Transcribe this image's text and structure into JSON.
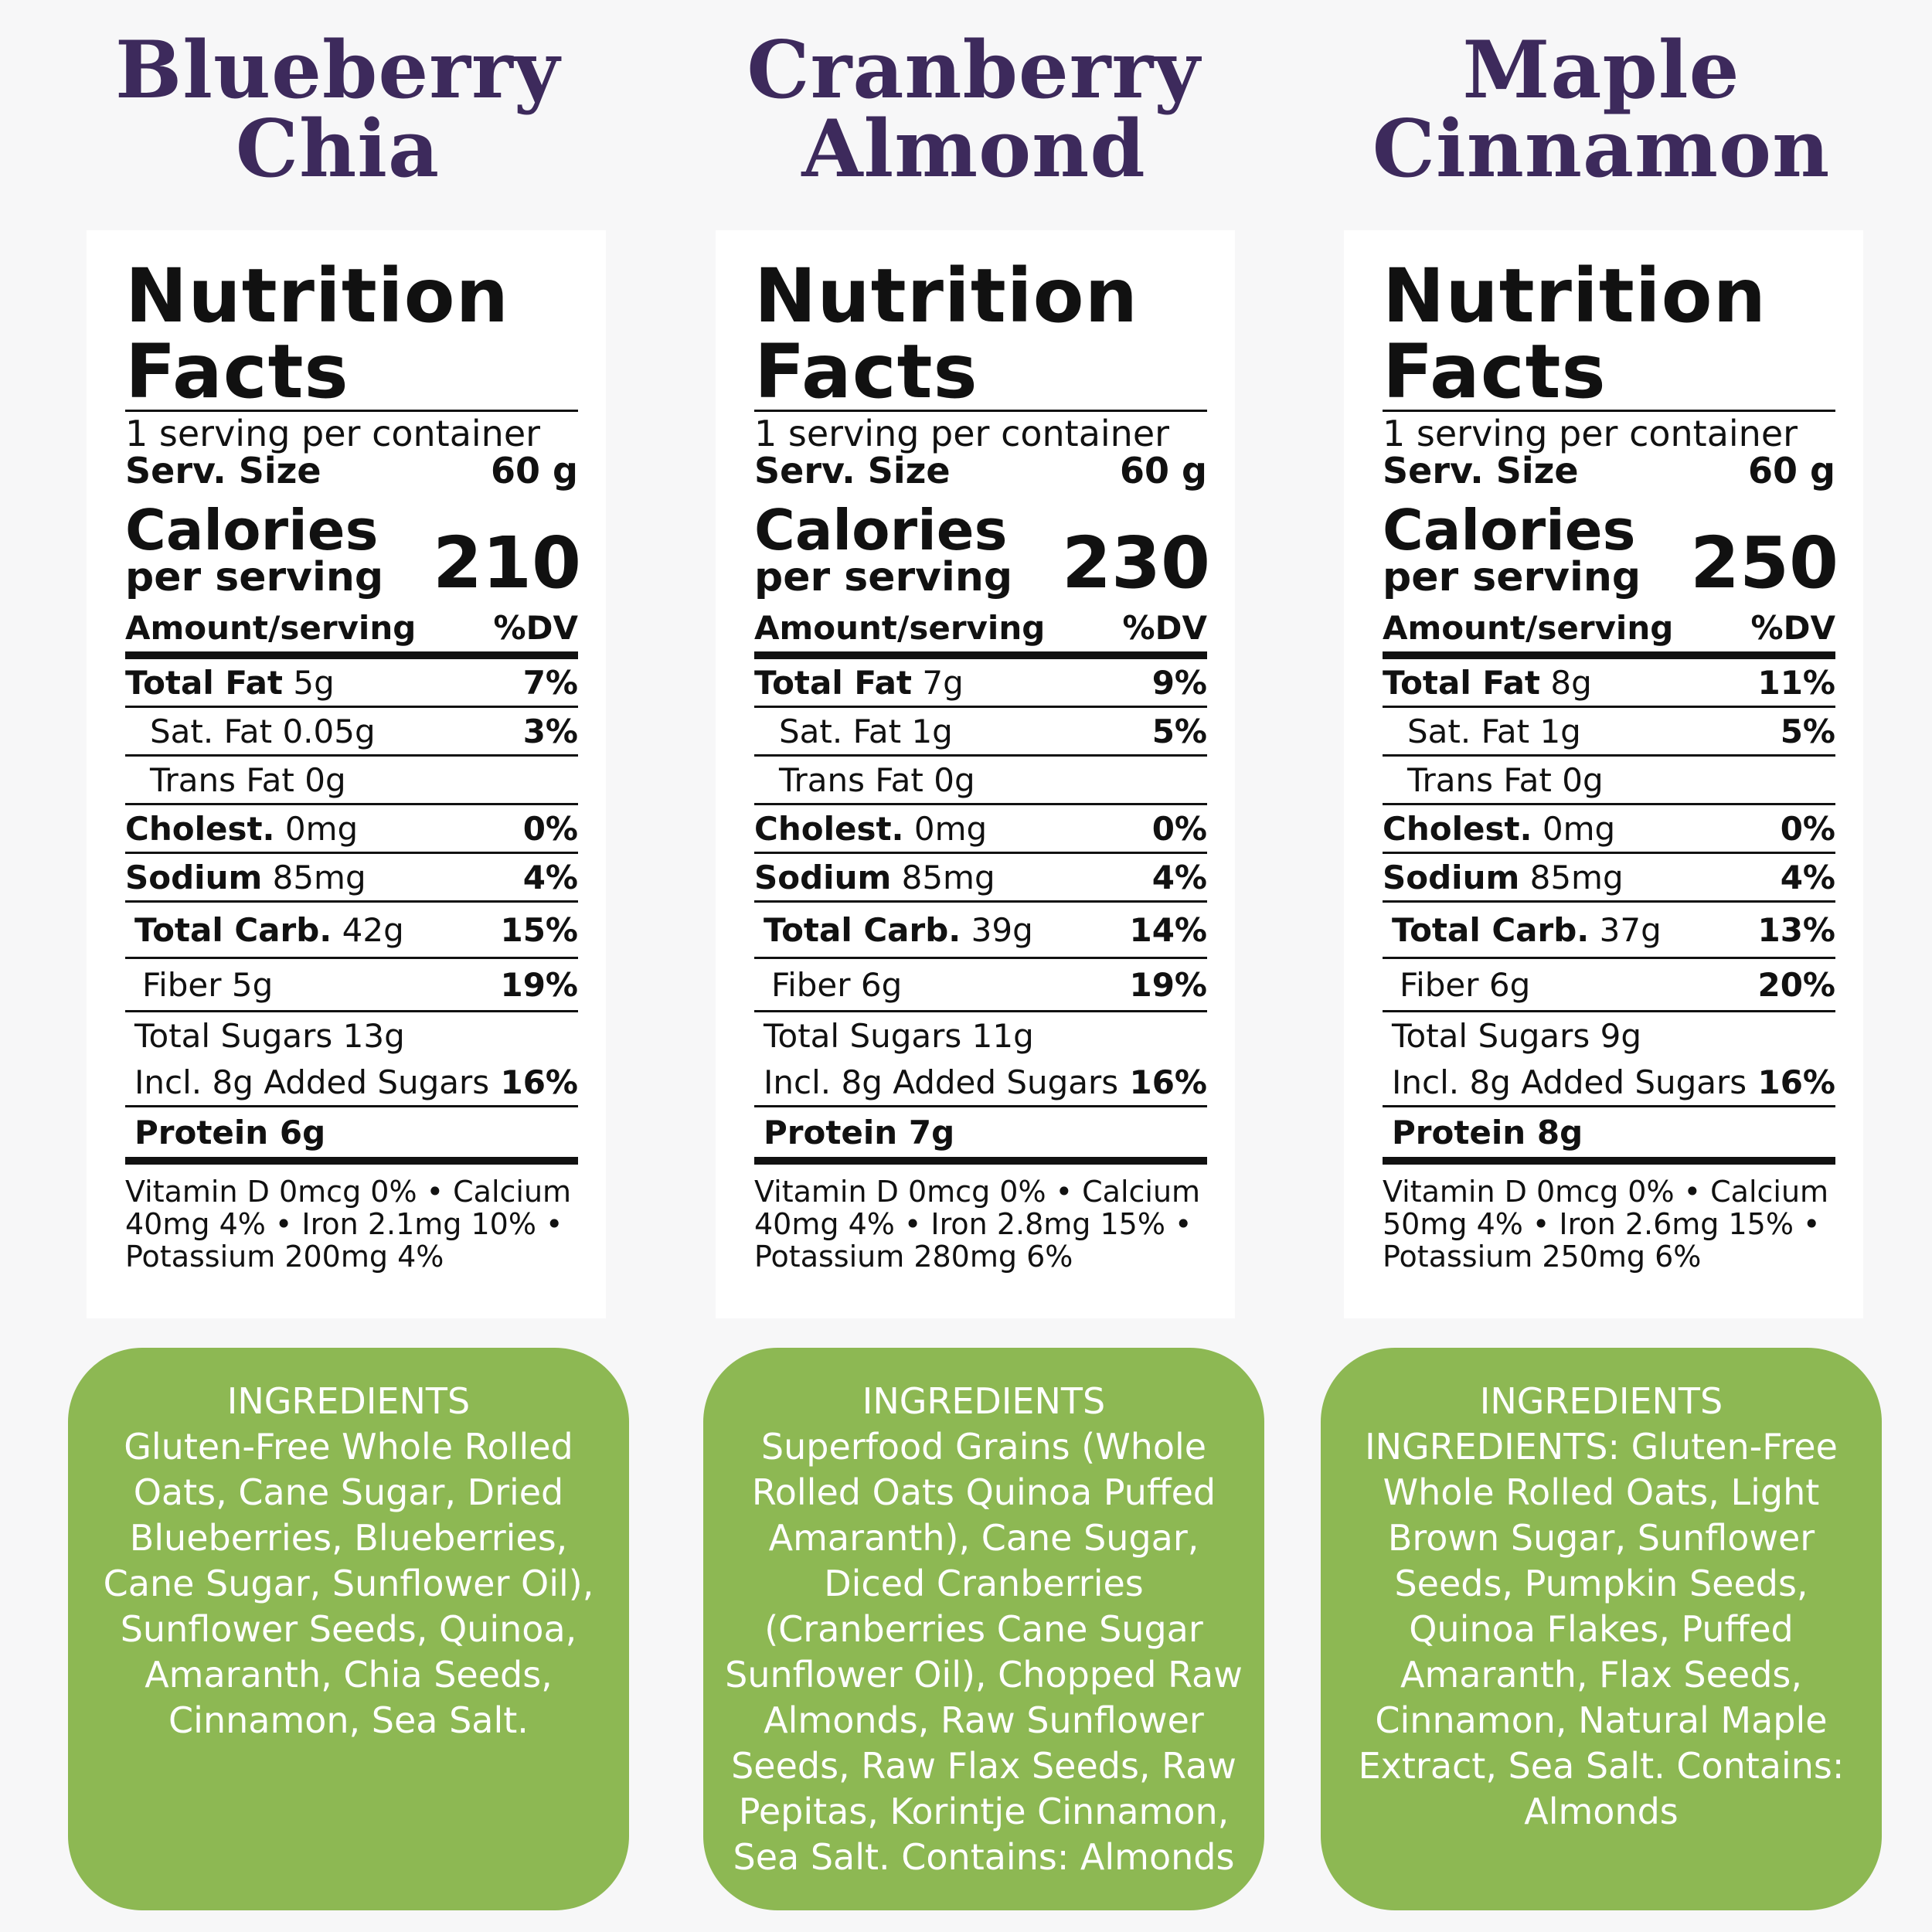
{
  "colors": {
    "title": "#3d2a5c",
    "ingredients_bg": "#8db853",
    "label_bg": "#ffffff",
    "page_bg": "#f7f7f8"
  },
  "products": [
    {
      "title_line1": "Blueberry",
      "title_line2": "Chia",
      "nutrition_title": "Nutrition Facts",
      "servings": "1 serving per container",
      "serv_size_label": "Serv. Size",
      "serv_size_value": "60 g",
      "calories_label": "Calories",
      "per_serving": "per serving",
      "calories": "210",
      "amount_label": "Amount/serving",
      "dv_label": "%DV",
      "total_fat_label": "Total Fat",
      "total_fat": "5g",
      "total_fat_dv": "7%",
      "sat_fat_label": "Sat. Fat",
      "sat_fat": "0.05g",
      "sat_fat_dv": "3%",
      "trans_fat_label": "Trans Fat",
      "trans_fat": "0g",
      "cholest_label": "Cholest.",
      "cholest": "0mg",
      "cholest_dv": "0%",
      "sodium_label": "Sodium",
      "sodium": "85mg",
      "sodium_dv": "4%",
      "carb_label": "Total Carb.",
      "carb": "42g",
      "carb_dv": "15%",
      "fiber_label": "Fiber",
      "fiber": "5g",
      "fiber_dv": "19%",
      "sugars_label": "Total Sugars",
      "sugars": "13g",
      "added_sugars": "Incl. 8g Added Sugars",
      "added_sugars_dv": "16%",
      "protein_label": "Protein",
      "protein": "6g",
      "vitamins": "Vitamin D 0mcg 0% • Calcium 40mg 4% • Iron 2.1mg 10% • Potassium 200mg 4%",
      "ingredients_heading": "INGREDIENTS",
      "ingredients": "Gluten-Free Whole Rolled Oats, Cane Sugar, Dried Blueberries, Blueberries, Cane Sugar, Sunflower Oil), Sunflower Seeds, Quinoa, Amaranth, Chia Seeds, Cinnamon, Sea Salt."
    },
    {
      "title_line1": "Cranberry",
      "title_line2": "Almond",
      "nutrition_title": "Nutrition Facts",
      "servings": "1 serving per container",
      "serv_size_label": "Serv. Size",
      "serv_size_value": "60 g",
      "calories_label": "Calories",
      "per_serving": "per serving",
      "calories": "230",
      "amount_label": "Amount/serving",
      "dv_label": "%DV",
      "total_fat_label": "Total Fat",
      "total_fat": "7g",
      "total_fat_dv": "9%",
      "sat_fat_label": "Sat. Fat",
      "sat_fat": "1g",
      "sat_fat_dv": "5%",
      "trans_fat_label": "Trans Fat",
      "trans_fat": "0g",
      "cholest_label": "Cholest.",
      "cholest": "0mg",
      "cholest_dv": "0%",
      "sodium_label": "Sodium",
      "sodium": "85mg",
      "sodium_dv": "4%",
      "carb_label": "Total Carb.",
      "carb": "39g",
      "carb_dv": "14%",
      "fiber_label": "Fiber",
      "fiber": "6g",
      "fiber_dv": "19%",
      "sugars_label": "Total Sugars",
      "sugars": "11g",
      "added_sugars": "Incl. 8g Added Sugars",
      "added_sugars_dv": "16%",
      "protein_label": "Protein",
      "protein": "7g",
      "vitamins": "Vitamin D 0mcg 0% • Calcium 40mg 4% • Iron 2.8mg 15% • Potassium 280mg 6%",
      "ingredients_heading": "INGREDIENTS",
      "ingredients": "Superfood Grains (Whole Rolled Oats Quinoa Puffed Amaranth), Cane Sugar, Diced Cranberries (Cranberries Cane Sugar Sunflower Oil), Chopped Raw Almonds, Raw Sunflower Seeds, Raw Flax Seeds, Raw Pepitas, Korintje Cinnamon, Sea Salt. Contains: Almonds"
    },
    {
      "title_line1": "Maple",
      "title_line2": "Cinnamon",
      "nutrition_title": "Nutrition Facts",
      "servings": "1 serving per container",
      "serv_size_label": "Serv. Size",
      "serv_size_value": "60 g",
      "calories_label": "Calories",
      "per_serving": "per serving",
      "calories": "250",
      "amount_label": "Amount/serving",
      "dv_label": "%DV",
      "total_fat_label": "Total Fat",
      "total_fat": "8g",
      "total_fat_dv": "11%",
      "sat_fat_label": "Sat. Fat",
      "sat_fat": "1g",
      "sat_fat_dv": "5%",
      "trans_fat_label": "Trans Fat",
      "trans_fat": "0g",
      "cholest_label": "Cholest.",
      "cholest": "0mg",
      "cholest_dv": "0%",
      "sodium_label": "Sodium",
      "sodium": "85mg",
      "sodium_dv": "4%",
      "carb_label": "Total Carb.",
      "carb": "37g",
      "carb_dv": "13%",
      "fiber_label": "Fiber",
      "fiber": "6g",
      "fiber_dv": "20%",
      "sugars_label": "Total Sugars",
      "sugars": "9g",
      "added_sugars": "Incl. 8g Added Sugars",
      "added_sugars_dv": "16%",
      "protein_label": "Protein",
      "protein": "8g",
      "vitamins": "Vitamin D 0mcg 0% • Calcium 50mg 4% • Iron 2.6mg 15% • Potassium 250mg 6%",
      "ingredients_heading": "INGREDIENTS",
      "ingredients": "INGREDIENTS: Gluten-Free Whole Rolled Oats, Light Brown Sugar, Sunflower Seeds, Pumpkin Seeds, Quinoa Flakes, Puffed Amaranth, Flax Seeds, Cinnamon, Natural Maple Extract, Sea Salt. Contains: Almonds"
    }
  ]
}
